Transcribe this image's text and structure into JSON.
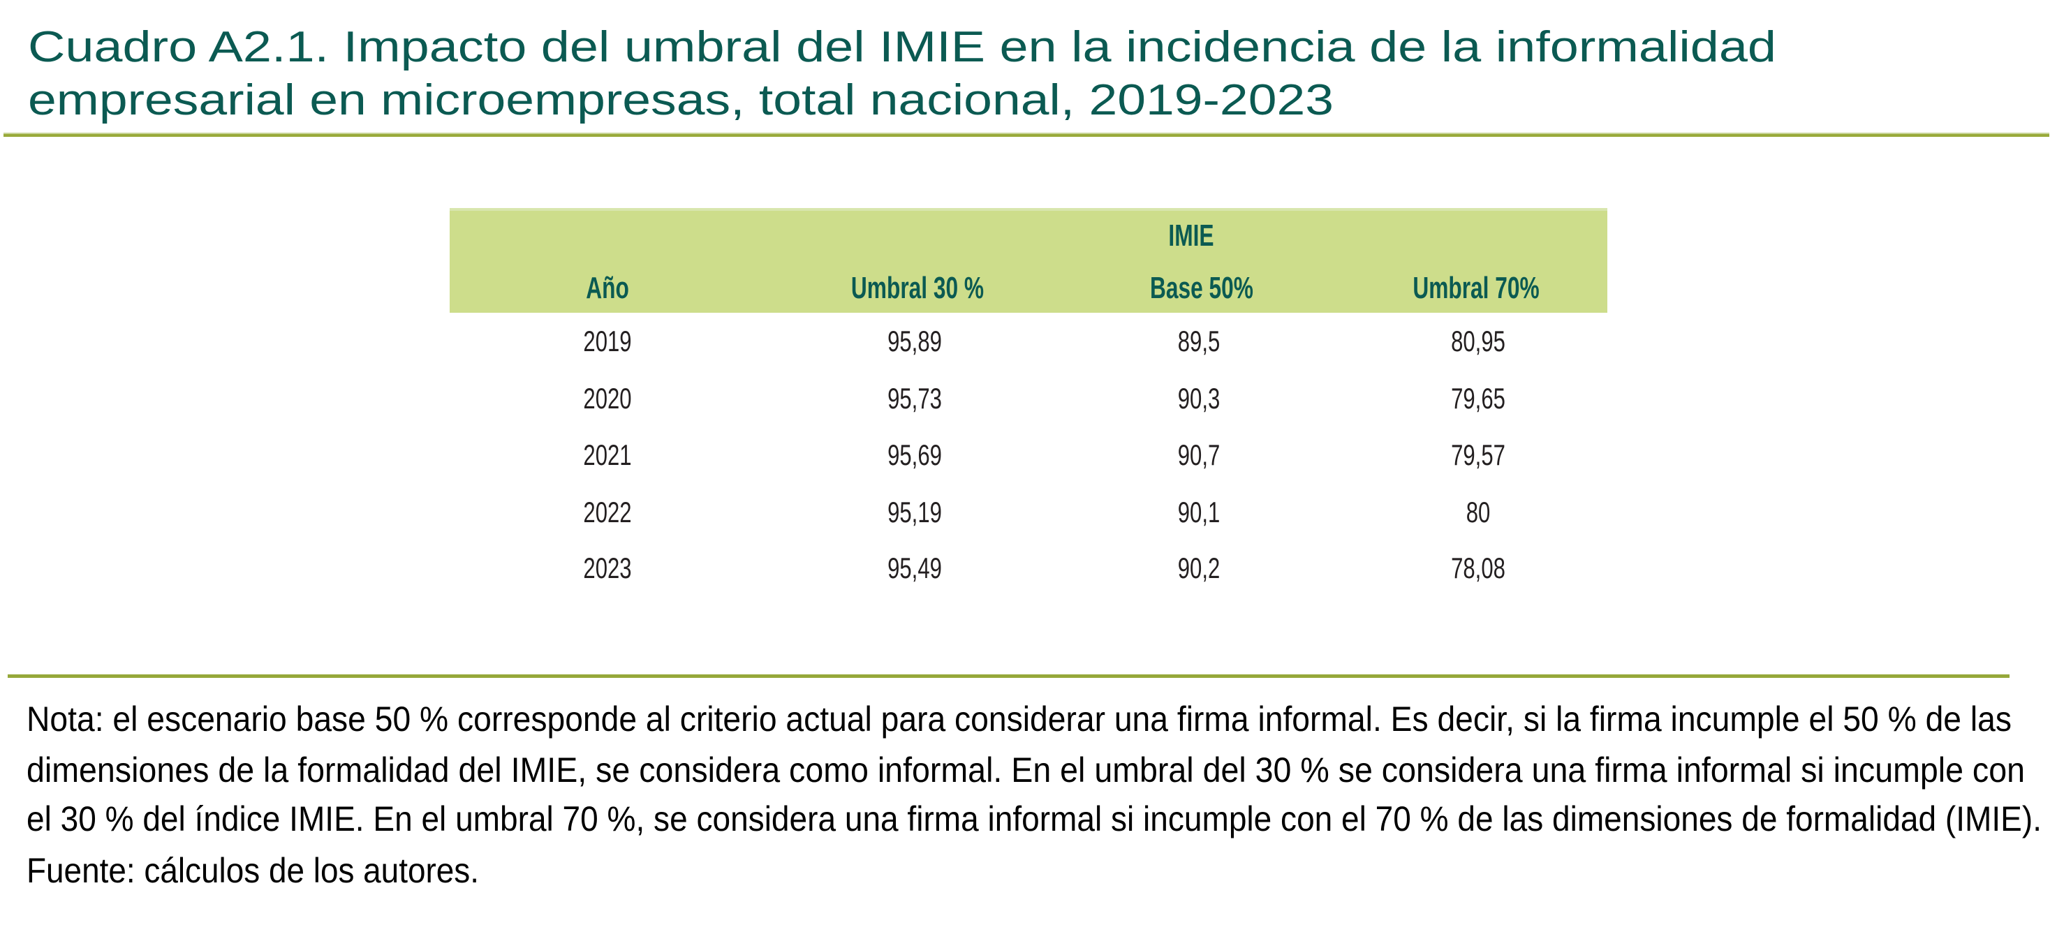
{
  "title": {
    "lines": [
      "Cuadro A2.1. Impacto del umbral del IMIE en la incidencia de la informalidad",
      "empresarial en microempresas, total nacional, 2019-2023"
    ]
  },
  "table": {
    "group_header": "IMIE",
    "columns": [
      "Año",
      "Umbral  30 %",
      "Base 50%",
      "Umbral 70%"
    ],
    "rows": [
      [
        "2019",
        "95,89",
        "89,5",
        "80,95"
      ],
      [
        "2020",
        "95,73",
        "90,3",
        "79,65"
      ],
      [
        "2021",
        "95,69",
        "90,7",
        "79,57"
      ],
      [
        "2022",
        "95,19",
        "90,1",
        "80"
      ],
      [
        "2023",
        "95,49",
        "90,2",
        "78,08"
      ]
    ]
  },
  "note": {
    "lines": [
      "Nota: el escenario base 50 % corresponde al criterio actual para considerar una firma informal. Es decir, si la firma incumple el 50 % de las",
      "dimensiones de la formalidad del IMIE, se considera como informal. En el umbral del 30 % se considera una firma informal si incumple con",
      "el 30 % del índice IMIE. En el umbral 70 %, se considera una firma informal si incumple con el 70 % de las dimensiones de formalidad (IMIE).",
      "Fuente: cálculos de los autores."
    ]
  },
  "colors": {
    "title_text": "#0b5a52",
    "rule": "#99aa3a",
    "header_bg": "#cddd8b",
    "header_text": "#0b5a52",
    "body_text": "#231f20"
  }
}
